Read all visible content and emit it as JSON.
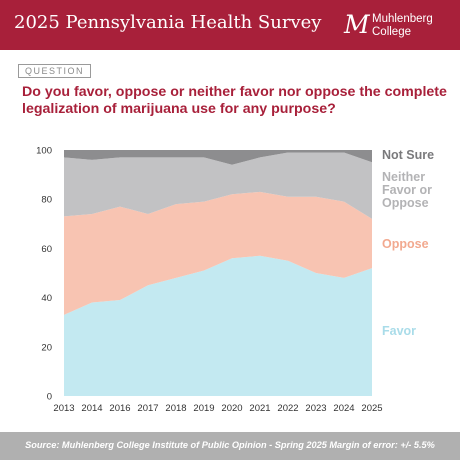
{
  "header": {
    "title": "2025 Pennsylvania Health Survey",
    "logo_line1": "Muhlenberg",
    "logo_line2": "College",
    "logo_mark": "M"
  },
  "question_tag": "QUESTION",
  "question_text": "Do you favor, oppose or neither favor nor oppose the complete legalization of marijuana use for any purpose?",
  "footer_text": "Source: Muhlenberg College Institute of Public Opinion - Spring 2025 Margin of error: +/- 5.5%",
  "chart_data": {
    "type": "area",
    "stacked": true,
    "title": "",
    "xlabel": "",
    "ylabel": "",
    "categories": [
      "2013",
      "2014",
      "2016",
      "2017",
      "2018",
      "2019",
      "2020",
      "2021",
      "2022",
      "2023",
      "2024",
      "2025"
    ],
    "ylim": [
      0,
      100
    ],
    "yticks": [
      0,
      20,
      40,
      60,
      80,
      100
    ],
    "grid": false,
    "legend_placement": "right",
    "series": [
      {
        "name": "Favor",
        "values": [
          33,
          38,
          39,
          45,
          48,
          51,
          56,
          57,
          55,
          50,
          48,
          52
        ],
        "color": "#c3e9f1",
        "label_color": "#a9dce9"
      },
      {
        "name": "Oppose",
        "values": [
          40,
          36,
          38,
          29,
          30,
          28,
          26,
          26,
          26,
          31,
          31,
          20
        ],
        "color": "#f8c4b2",
        "label_color": "#f2a98f"
      },
      {
        "name": "Neither Favor or Oppose",
        "values": [
          24,
          22,
          20,
          23,
          19,
          18,
          12,
          14,
          18,
          18,
          20,
          23
        ],
        "color": "#c2c2c4",
        "label_color": "#b3b3b5"
      },
      {
        "name": "Not Sure",
        "values": [
          3,
          4,
          3,
          3,
          3,
          3,
          6,
          3,
          1,
          1,
          1,
          5
        ],
        "color": "#8d8d8f",
        "label_color": "#7a7a7c"
      }
    ]
  }
}
